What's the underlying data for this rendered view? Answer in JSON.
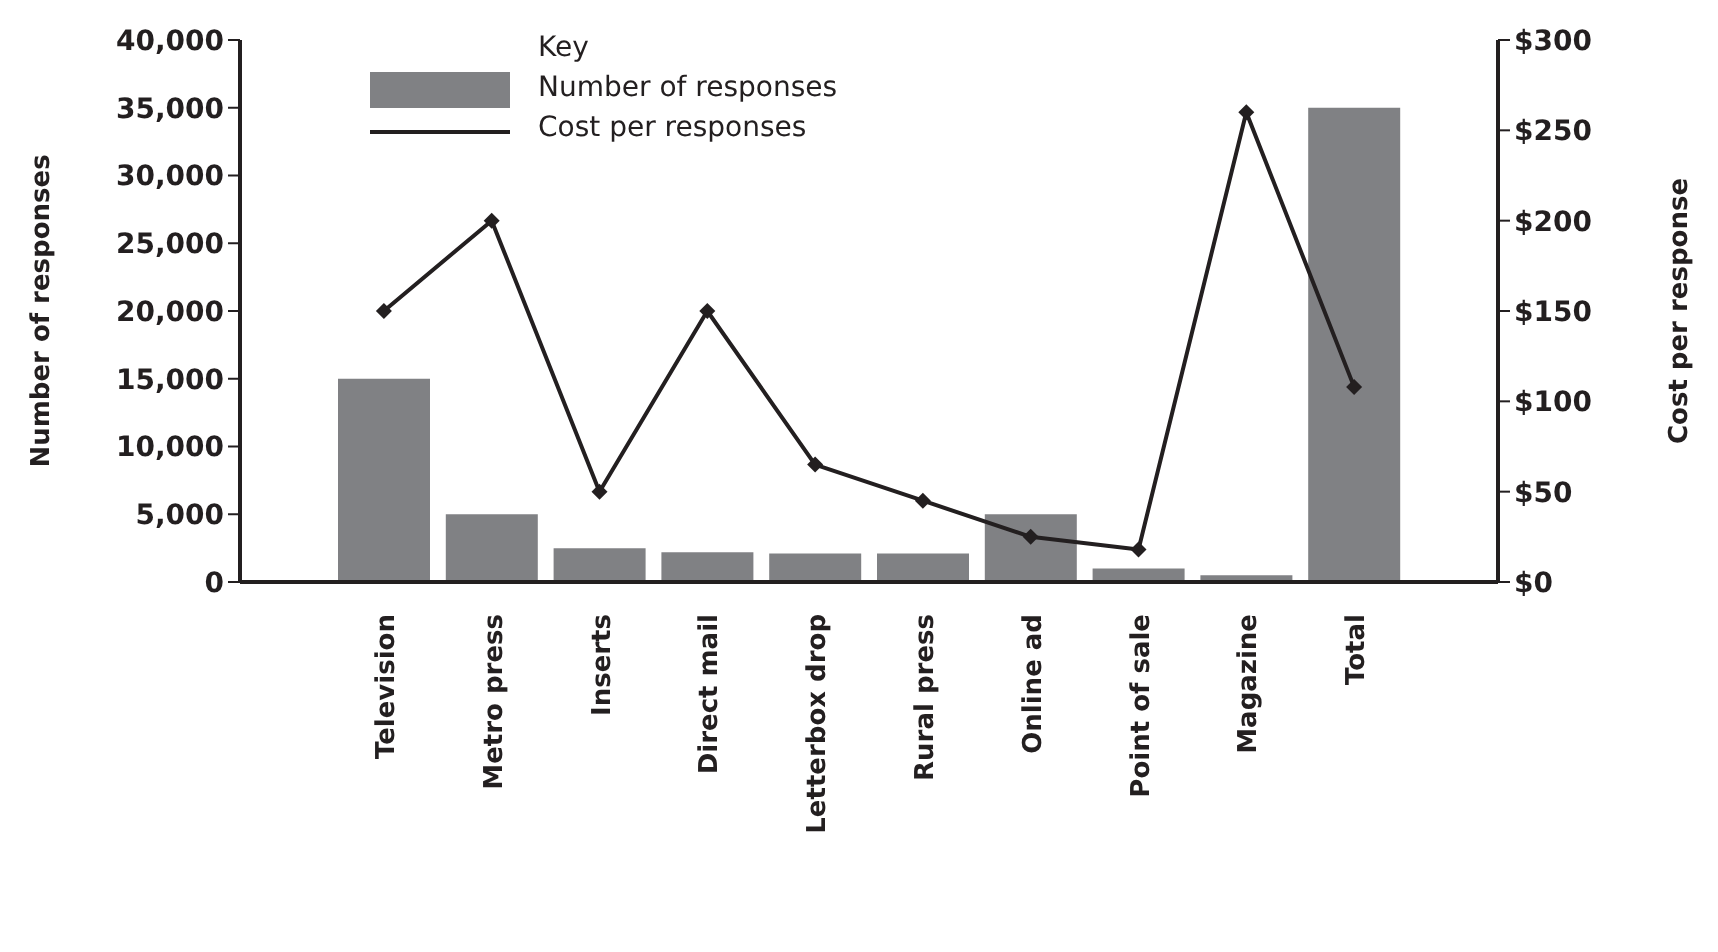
{
  "chart_data": {
    "type": "bar",
    "categories": [
      "Television",
      "Metro press",
      "Inserts",
      "Direct mail",
      "Letterbox drop",
      "Rural press",
      "Online ad",
      "Point of sale",
      "Magazine",
      "Total"
    ],
    "series": [
      {
        "name": "Number of responses",
        "color": "#808184",
        "values": [
          15000,
          5000,
          2500,
          2200,
          2100,
          2100,
          5000,
          1000,
          500,
          35000
        ]
      },
      {
        "name": "Cost per responses",
        "type": "line",
        "axis": "y2",
        "color": "#231f20",
        "marker": "diamond",
        "values": [
          150,
          200,
          50,
          150,
          65,
          45,
          25,
          18,
          260,
          108
        ]
      }
    ],
    "ylabel": "Number of responses",
    "y2label": "Cost per response",
    "legend_title": "Key",
    "legend": "top left",
    "ylim": [
      0,
      40000
    ],
    "yticks": [
      {
        "value": 0,
        "label": "0"
      },
      {
        "value": 5000,
        "label": "5,000"
      },
      {
        "value": 10000,
        "label": "10,000"
      },
      {
        "value": 15000,
        "label": "15,000"
      },
      {
        "value": 20000,
        "label": "20,000"
      },
      {
        "value": 25000,
        "label": "25,000"
      },
      {
        "value": 30000,
        "label": "30,000"
      },
      {
        "value": 35000,
        "label": "35,000"
      },
      {
        "value": 40000,
        "label": "40,000"
      }
    ],
    "y2lim": [
      0,
      300
    ],
    "y2ticks": [
      {
        "value": 0,
        "label": "$0"
      },
      {
        "value": 50,
        "label": "$50"
      },
      {
        "value": 100,
        "label": "$100"
      },
      {
        "value": 150,
        "label": "$150"
      },
      {
        "value": 200,
        "label": "$200"
      },
      {
        "value": 250,
        "label": "$250"
      },
      {
        "value": 300,
        "label": "$300"
      }
    ],
    "grid": false
  }
}
